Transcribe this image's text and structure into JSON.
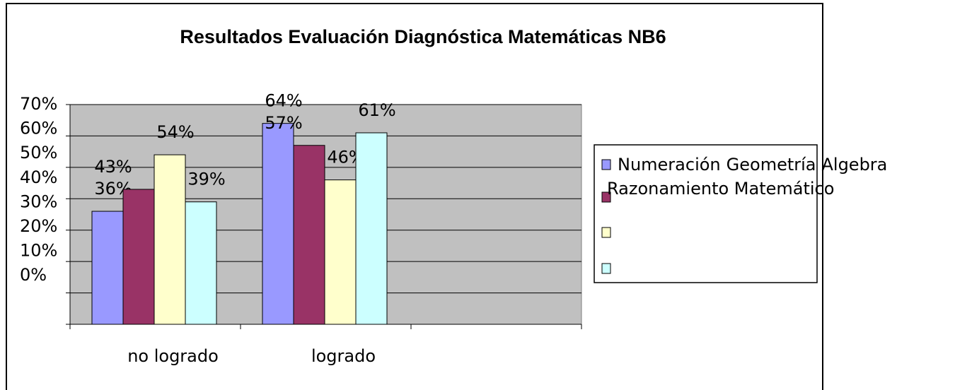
{
  "chart_data": {
    "type": "bar",
    "title": "Resultados Evaluación Diagnóstica Matemáticas NB6",
    "categories": [
      "no logrado",
      "logrado",
      null
    ],
    "series": [
      {
        "name": "Numeración",
        "color": "#9999ff",
        "values": [
          36,
          64,
          null
        ],
        "value_labels": [
          "36%",
          "64%",
          null
        ]
      },
      {
        "name": "Geometría",
        "color": "#993366",
        "values": [
          43,
          57,
          null
        ],
        "value_labels": [
          "43%",
          "57%",
          null
        ]
      },
      {
        "name": "Algebra",
        "color": "#ffffcc",
        "values": [
          54,
          46,
          null
        ],
        "value_labels": [
          "54%",
          "46%",
          null
        ]
      },
      {
        "name": "Razonamiento Matemático",
        "color": "#ccffff",
        "values": [
          39,
          61,
          null
        ],
        "value_labels": [
          "39%",
          "61%",
          null
        ]
      }
    ],
    "ylim": [
      0,
      70
    ],
    "yticks": [
      {
        "value": 0,
        "label": "0%"
      },
      {
        "value": 10,
        "label": "10%"
      },
      {
        "value": 20,
        "label": "20%"
      },
      {
        "value": 30,
        "label": "30%"
      },
      {
        "value": 40,
        "label": "40%"
      },
      {
        "value": 50,
        "label": "50%"
      },
      {
        "value": 60,
        "label": "60%"
      },
      {
        "value": 70,
        "label": "70%"
      }
    ],
    "grid": true,
    "legend": "right",
    "background": "#c0c0c0"
  }
}
